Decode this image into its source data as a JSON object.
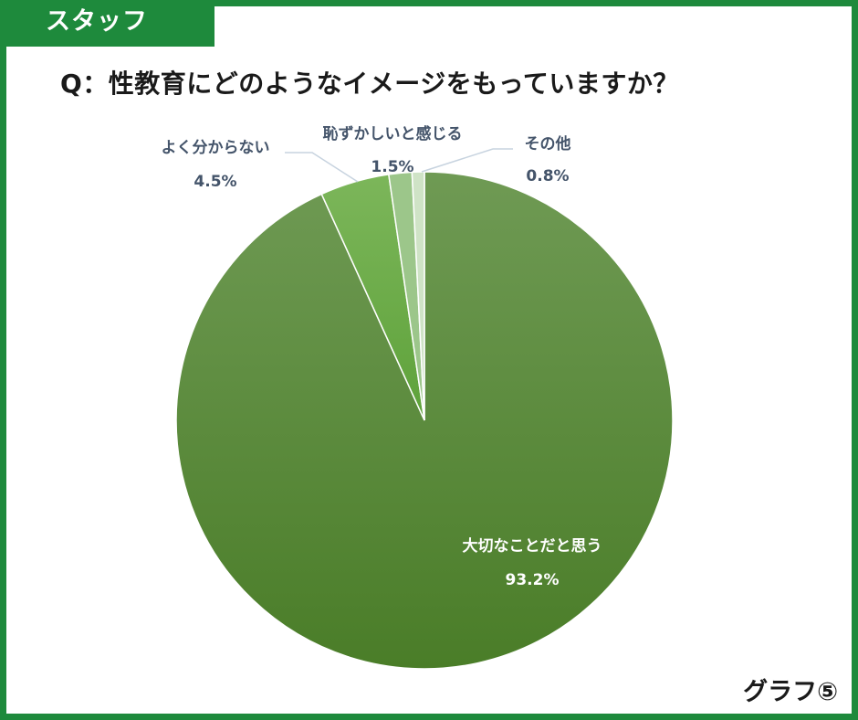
{
  "header": {
    "tag_label": "スタッフ"
  },
  "question": "Q：性教育にどのようなイメージをもっていますか？",
  "footer": {
    "graph_label": "グラフ⑤"
  },
  "colors": {
    "frame": "#1e8a3c",
    "label_text": "#44546a",
    "inside_label_text": "#ffffff",
    "leader_line": "#c7d3df"
  },
  "chart_data": {
    "type": "pie",
    "title": "Q：性教育にどのようなイメージをもっていますか？",
    "start_angle": "12 o'clock, clockwise",
    "slices": [
      {
        "label": "大切なことだと思う",
        "value": 93.2,
        "display": "93.2%",
        "color": "#5a8f3a",
        "label_position": "inside"
      },
      {
        "label": "よく分からない",
        "value": 4.5,
        "display": "4.5%",
        "color": "#6aaa44",
        "label_position": "outside"
      },
      {
        "label": "恥ずかしいと感じる",
        "value": 1.5,
        "display": "1.5%",
        "color": "#9cc68a",
        "label_position": "outside"
      },
      {
        "label": "その他",
        "value": 0.8,
        "display": "0.8%",
        "color": "#cfe3c6",
        "label_position": "outside"
      }
    ]
  }
}
